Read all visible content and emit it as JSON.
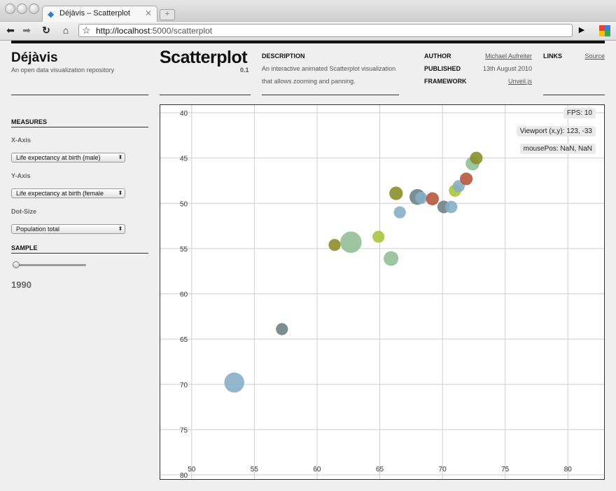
{
  "browser": {
    "tab_title": "Déjàvis – Scatterplot",
    "url_host": "http://localhost",
    "url_rest": ":5000/scatterplot"
  },
  "site": {
    "name": "Déjàvis",
    "tagline": "An open data visualization repository"
  },
  "header": {
    "title": "Scatterplot",
    "version": "0.1",
    "description_label": "DESCRIPTION",
    "description": "An interactive animated Scatterplot visualization that allows zooming and panning.",
    "author_label": "AUTHOR",
    "author": "Michael Aufreiter",
    "published_label": "PUBLISHED",
    "published": "13th August 2010",
    "framework_label": "FRAMEWORK",
    "framework": "Unveil.js",
    "links_label": "LINKS",
    "source_link": "Source"
  },
  "sidebar": {
    "measures_label": "MEASURES",
    "x_axis_label": "X-Axis",
    "x_axis_value": "Life expectancy at birth (male)",
    "y_axis_label": "Y-Axis",
    "y_axis_value": "Life expectancy at birth (female",
    "dot_size_label": "Dot-Size",
    "dot_size_value": "Population total",
    "sample_label": "SAMPLE",
    "sample_year": "1990",
    "sample_slider_fraction": 0.0
  },
  "overlays": {
    "fps": "FPS: 10",
    "viewport": "Viewport (x,y): 123, -33",
    "mousepos": "mousePos: NaN, NaN"
  },
  "colors": {
    "blue": "#86aec5",
    "olive": "#8a8f2a",
    "green": "#93bf97",
    "lime": "#a8c43d",
    "rust": "#b6573d",
    "slate": "#6f8287"
  },
  "chart_data": {
    "type": "scatter",
    "xlim": [
      47.5,
      83
    ],
    "ylim": [
      40,
      80
    ],
    "y_inverted": true,
    "grid": true,
    "x_ticks": [
      50,
      55,
      60,
      65,
      70,
      75,
      80
    ],
    "y_ticks": [
      40,
      45,
      50,
      55,
      60,
      65,
      70,
      75,
      80
    ],
    "points": [
      {
        "x": 53.4,
        "y": 69.8,
        "size": 5,
        "color": "blue"
      },
      {
        "x": 57.2,
        "y": 63.9,
        "size": 1,
        "color": "slate"
      },
      {
        "x": 61.4,
        "y": 54.6,
        "size": 1,
        "color": "olive"
      },
      {
        "x": 62.7,
        "y": 54.3,
        "size": 6,
        "color": "green"
      },
      {
        "x": 64.9,
        "y": 53.7,
        "size": 1,
        "color": "lime"
      },
      {
        "x": 65.9,
        "y": 56.1,
        "size": 2,
        "color": "green"
      },
      {
        "x": 66.3,
        "y": 48.9,
        "size": 1.5,
        "color": "olive"
      },
      {
        "x": 66.6,
        "y": 51.0,
        "size": 1,
        "color": "blue"
      },
      {
        "x": 68.0,
        "y": 49.3,
        "size": 2.5,
        "color": "slate"
      },
      {
        "x": 68.3,
        "y": 49.4,
        "size": 1,
        "color": "blue"
      },
      {
        "x": 69.2,
        "y": 49.5,
        "size": 1.3,
        "color": "rust"
      },
      {
        "x": 70.1,
        "y": 50.4,
        "size": 1.2,
        "color": "slate"
      },
      {
        "x": 70.7,
        "y": 50.4,
        "size": 1.1,
        "color": "blue"
      },
      {
        "x": 71.0,
        "y": 48.6,
        "size": 1.1,
        "color": "lime"
      },
      {
        "x": 71.3,
        "y": 48.1,
        "size": 1,
        "color": "blue"
      },
      {
        "x": 71.9,
        "y": 47.3,
        "size": 1.2,
        "color": "rust"
      },
      {
        "x": 72.4,
        "y": 45.6,
        "size": 1.6,
        "color": "green"
      },
      {
        "x": 72.7,
        "y": 45.0,
        "size": 1.2,
        "color": "olive"
      }
    ]
  }
}
